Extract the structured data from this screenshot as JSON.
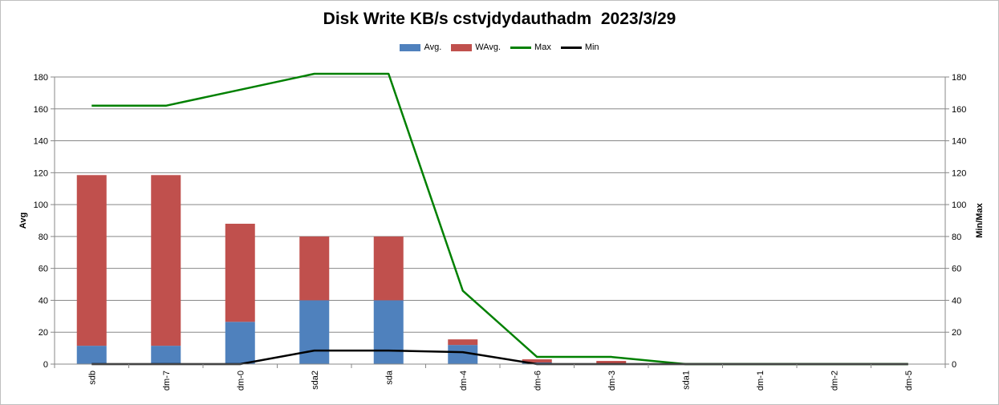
{
  "chart_data": {
    "type": "bar",
    "title": "Disk Write KB/s cstvjdydauthadm  2023/3/29",
    "ylabel": "Avg",
    "y2label": "Min/Max",
    "ylim": [
      0,
      180
    ],
    "y2lim": [
      0,
      180
    ],
    "yticks": [
      0,
      20,
      40,
      60,
      80,
      100,
      120,
      140,
      160,
      180
    ],
    "stacked": true,
    "legend_position": "top",
    "grid": true,
    "categories": [
      "sdb",
      "dm-7",
      "dm-0",
      "sda2",
      "sda",
      "dm-4",
      "dm-6",
      "dm-3",
      "sda1",
      "dm-1",
      "dm-2",
      "dm-5"
    ],
    "series": [
      {
        "name": "Avg.",
        "kind": "bar",
        "color": "#4f81bd",
        "values": [
          11.5,
          11.5,
          26.5,
          40,
          40,
          12,
          1,
          0.5,
          0,
          0,
          0,
          0
        ]
      },
      {
        "name": "WAvg.",
        "kind": "bar",
        "color": "#c0504d",
        "values": [
          107,
          107,
          61.5,
          40,
          40,
          3.5,
          2,
          1.5,
          0,
          0,
          0,
          0
        ]
      },
      {
        "name": "Max",
        "kind": "line",
        "axis": "right",
        "color": "#008000",
        "values": [
          162,
          162,
          172,
          182,
          182,
          46,
          4.5,
          4.5,
          0,
          0,
          0,
          0
        ]
      },
      {
        "name": "Min",
        "kind": "line",
        "axis": "right",
        "color": "#000000",
        "values": [
          0,
          0,
          0,
          8.5,
          8.5,
          7.5,
          0,
          0,
          0,
          0,
          0,
          0
        ]
      }
    ]
  }
}
